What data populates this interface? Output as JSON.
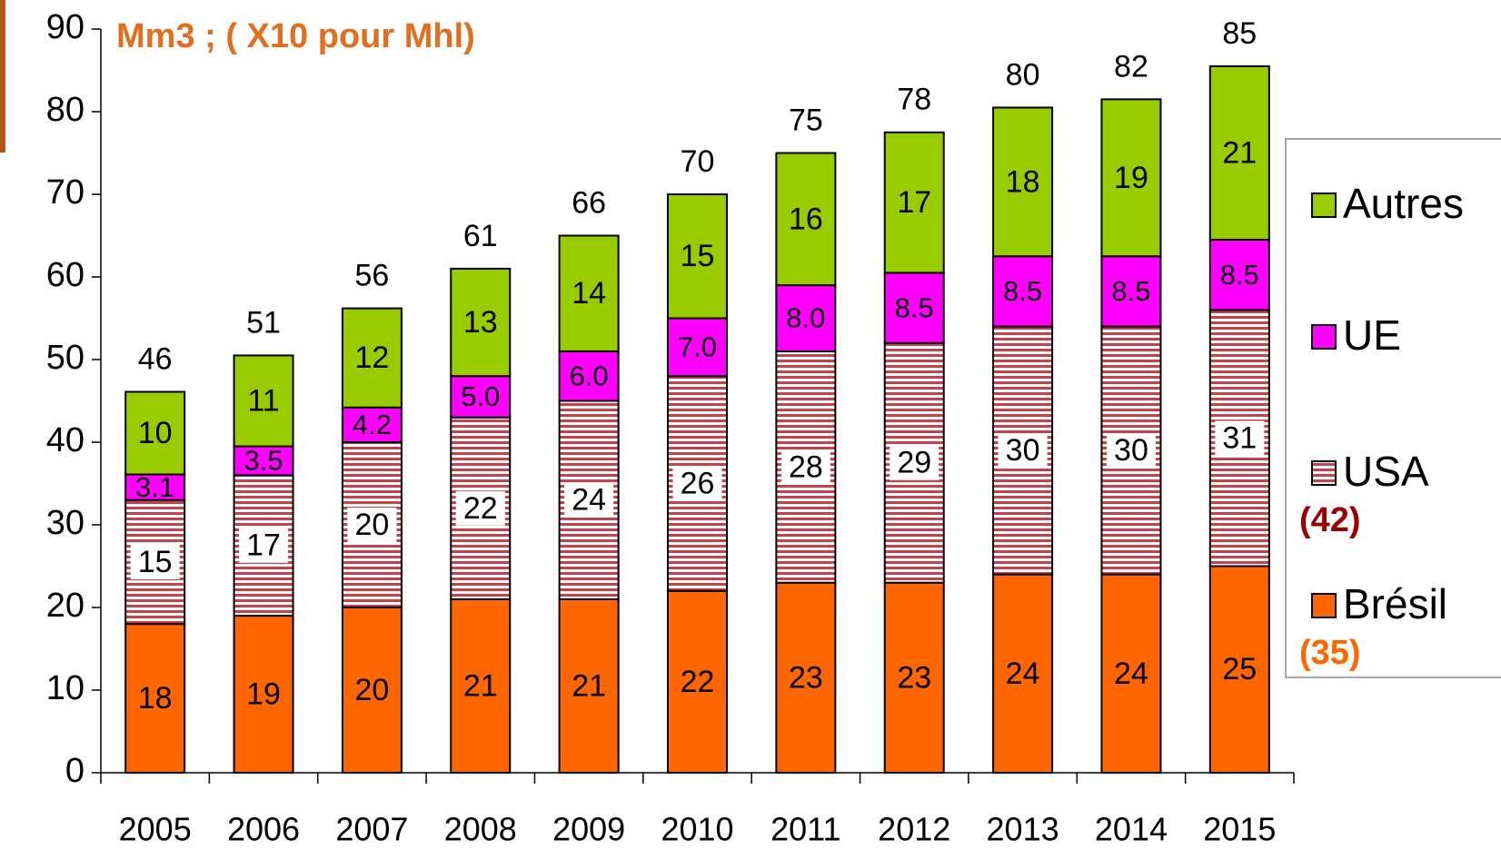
{
  "chart_data": {
    "type": "stacked_bar",
    "title": "Mm3 ; ( X10 pour Mhl)",
    "categories": [
      "2005",
      "2006",
      "2007",
      "2008",
      "2009",
      "2010",
      "2011",
      "2012",
      "2013",
      "2014",
      "2015"
    ],
    "series": [
      {
        "name": "Brésil",
        "color": "#ff6600",
        "values": [
          18,
          19,
          20,
          21,
          21,
          22,
          23,
          23,
          24,
          24,
          25
        ]
      },
      {
        "name": "USA",
        "color": "#c00000",
        "pattern": "stripes",
        "values": [
          15,
          17,
          20,
          22,
          24,
          26,
          28,
          29,
          30,
          30,
          31
        ]
      },
      {
        "name": "UE",
        "color": "#ff00ff",
        "values": [
          3.1,
          3.5,
          4.2,
          5.0,
          6.0,
          7.0,
          8.0,
          8.5,
          8.5,
          8.5,
          8.5
        ],
        "value_labels": [
          "3.1",
          "3.5",
          "4.2",
          "5.0",
          "6.0",
          "7.0",
          "8.0",
          "8.5",
          "8.5",
          "8.5",
          "8.5"
        ]
      },
      {
        "name": "Autres",
        "color": "#99cc00",
        "values": [
          10,
          11,
          12,
          13,
          14,
          15,
          16,
          17,
          18,
          19,
          21
        ]
      }
    ],
    "totals": [
      46,
      51,
      56,
      61,
      66,
      70,
      75,
      78,
      80,
      82,
      85
    ],
    "legend_notes": [
      {
        "series": "USA",
        "text": "(42)",
        "color": "#990000"
      },
      {
        "series": "Brésil",
        "text": "(35)",
        "color": "#ff6600"
      }
    ],
    "ylim": [
      0,
      90
    ],
    "yticks": [
      0,
      10,
      20,
      30,
      40,
      50,
      60,
      70,
      80,
      90
    ],
    "legend": "right"
  }
}
